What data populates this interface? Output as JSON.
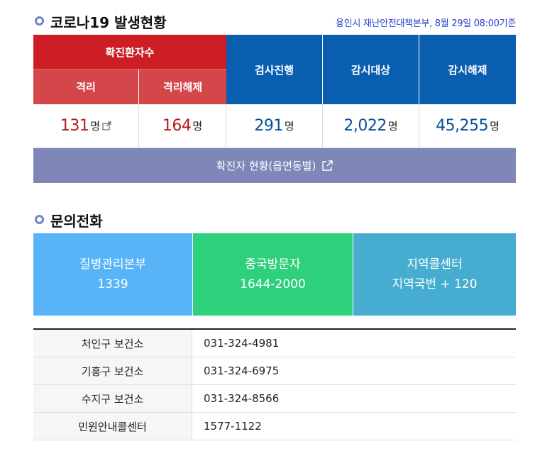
{
  "section1": {
    "title": "코로나19 발생현황",
    "note": "용인시 재난안전대책본부, 8월 29일 08:00기준"
  },
  "status": {
    "confirmed_header": "확진환자수",
    "isolation_label": "격리",
    "released_label": "격리해제",
    "testing_label": "검사진행",
    "monitoring_label": "감시대상",
    "monitoring_released_label": "감시해제",
    "isolation_value": "131",
    "released_value": "164",
    "testing_value": "291",
    "monitoring_value": "2,022",
    "monitoring_released_value": "45,255",
    "unit": "명",
    "by_district_button": "확진자 현황(읍면동별)"
  },
  "section2": {
    "title": "문의전화"
  },
  "hotlines": [
    {
      "name": "질병관리본부",
      "number": "1339"
    },
    {
      "name": "중국방문자",
      "number": "1644-2000"
    },
    {
      "name": "지역콜센터",
      "number": "지역국번 + 120"
    }
  ],
  "health_centers": [
    {
      "name": "처인구 보건소",
      "phone": "031-324-4981"
    },
    {
      "name": "기흥구 보건소",
      "phone": "031-324-6975"
    },
    {
      "name": "수지구 보건소",
      "phone": "031-324-8566"
    },
    {
      "name": "민원안내콜센터",
      "phone": "1577-1122"
    }
  ],
  "colors": {
    "confirmed_red": "#cc1e24",
    "sub_red": "#d3474b",
    "header_blue": "#0a5eb0",
    "bar_purple": "#7f86b8",
    "tile_blue": "#58b4f7",
    "tile_green": "#2fd07b",
    "tile_teal": "#46add0"
  },
  "icons": [
    "bullet-circle-icon",
    "external-link-icon"
  ]
}
